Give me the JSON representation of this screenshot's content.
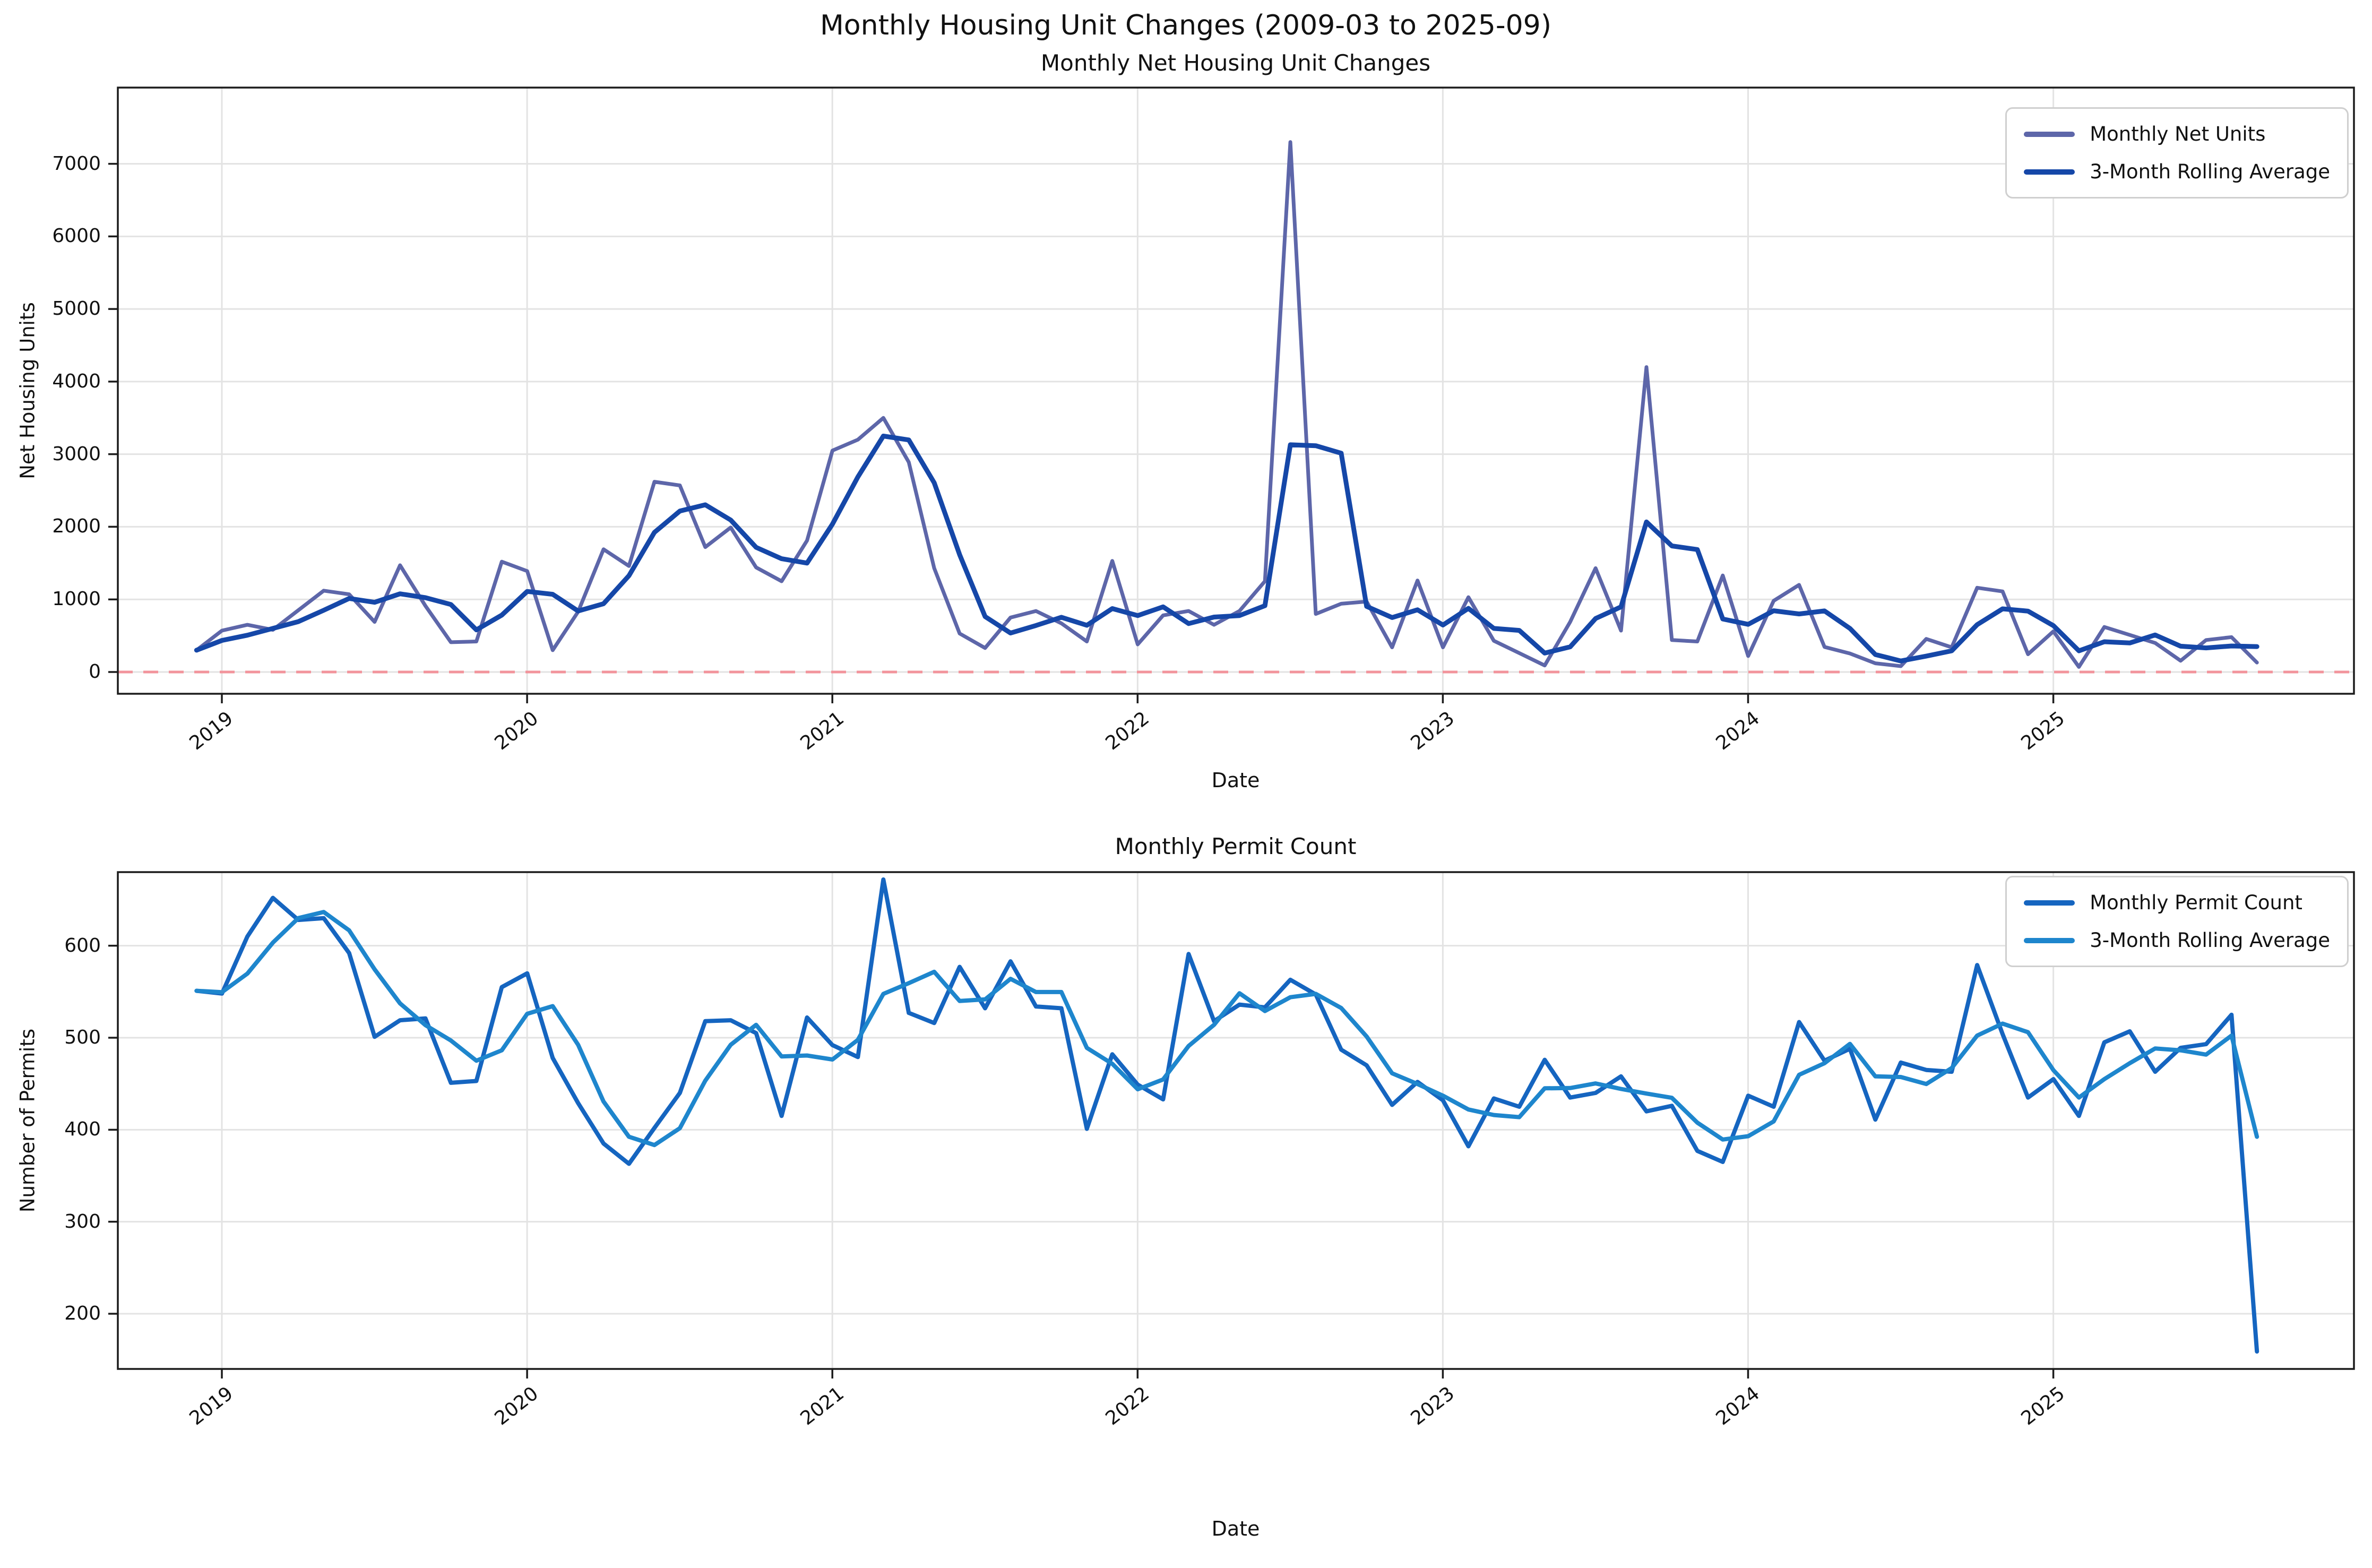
{
  "figure": {
    "title": "Monthly Housing Unit Changes (2009-03 to 2025-09)"
  },
  "chart_data": [
    {
      "type": "line",
      "title": "Monthly Net Housing Unit Changes",
      "xlabel": "Date",
      "ylabel": "Net Housing Units",
      "x_start": "2018-12",
      "x_end": "2025-09",
      "x_frequency": "monthly",
      "xtick_labels": [
        "2019",
        "2020",
        "2021",
        "2022",
        "2023",
        "2024",
        "2025"
      ],
      "yticks": [
        0,
        1000,
        2000,
        3000,
        4000,
        5000,
        6000,
        7000
      ],
      "ylim": [
        -300,
        8050
      ],
      "grid": true,
      "legend_position": "upper right",
      "zero_line": {
        "value": 0,
        "color": "#f2949c",
        "style": "dashed"
      },
      "series": [
        {
          "name": "Monthly Net Units",
          "color": "#5d66a9",
          "width": 7,
          "values": [
            300,
            570,
            650,
            580,
            850,
            1120,
            1070,
            690,
            1470,
            910,
            410,
            420,
            1520,
            1390,
            300,
            830,
            1690,
            1460,
            2620,
            2570,
            1720,
            1990,
            1440,
            1250,
            1810,
            3050,
            3200,
            3500,
            2890,
            1430,
            530,
            330,
            750,
            840,
            670,
            420,
            1530,
            380,
            780,
            840,
            650,
            840,
            1250,
            7300,
            800,
            940,
            970,
            340,
            1260,
            340,
            1030,
            430,
            260,
            90,
            690,
            1430,
            570,
            4200,
            440,
            420,
            1330,
            220,
            980,
            1200,
            345,
            255,
            120,
            80,
            455,
            340,
            1160,
            1110,
            245,
            560,
            70,
            620,
            510,
            400,
            155,
            440,
            480,
            130
          ]
        },
        {
          "name": "3-Month Rolling Average",
          "color": "#1547a8",
          "width": 9,
          "derived_from": 0,
          "transform": "rolling_mean_3",
          "min_periods": 1
        }
      ]
    },
    {
      "type": "line",
      "title": "Monthly Permit Count",
      "xlabel": "Date",
      "ylabel": "Number of Permits",
      "x_start": "2018-12",
      "x_end": "2025-09",
      "x_frequency": "monthly",
      "xtick_labels": [
        "2019",
        "2020",
        "2021",
        "2022",
        "2023",
        "2024",
        "2025"
      ],
      "yticks": [
        200,
        300,
        400,
        500,
        600
      ],
      "ylim": [
        140,
        680
      ],
      "grid": true,
      "legend_position": "upper right",
      "series": [
        {
          "name": "Monthly Permit Count",
          "color": "#1565c0",
          "width": 8,
          "values": [
            551,
            548,
            610,
            652,
            628,
            630,
            592,
            501,
            519,
            521,
            451,
            453,
            555,
            570,
            478,
            429,
            385,
            363,
            402,
            440,
            518,
            519,
            505,
            415,
            522,
            492,
            479,
            672,
            527,
            516,
            577,
            532,
            583,
            534,
            532,
            401,
            482,
            449,
            433,
            591,
            518,
            536,
            533,
            563,
            547,
            487,
            470,
            427,
            452,
            432,
            382,
            434,
            425,
            476,
            435,
            440,
            458,
            420,
            426,
            377,
            365,
            437,
            425,
            517,
            475,
            488,
            411,
            473,
            465,
            463,
            579,
            504,
            435,
            455,
            415,
            495,
            507,
            463,
            489,
            493,
            525,
            159
          ]
        },
        {
          "name": "3-Month Rolling Average",
          "color": "#1e86cd",
          "width": 8,
          "derived_from": 0,
          "transform": "rolling_mean_3",
          "min_periods": 1
        }
      ]
    }
  ]
}
